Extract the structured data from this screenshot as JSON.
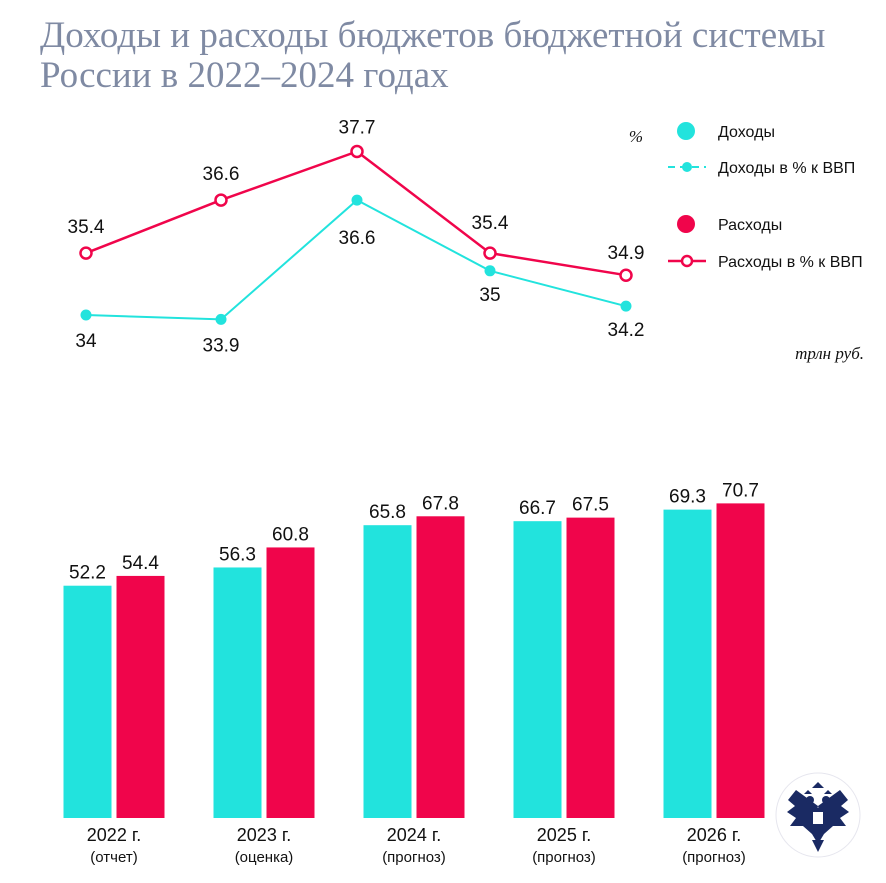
{
  "title": {
    "line1": "Доходы и расходы бюджетов бюджетной системы",
    "line2": "России в 2022–2024 годах"
  },
  "colors": {
    "income": "#22e3dd",
    "expense": "#f0054b",
    "title": "#7f8aa3"
  },
  "logo_icon": "double-headed-eagle-emblem-icon",
  "chart_data": [
    {
      "type": "line",
      "unit_label": "%",
      "categories": [
        "2022 г. (отчет)",
        "2023 г. (оценка)",
        "2024 г. (прогноз)",
        "2025 г. (прогноз)",
        "2026 г. (прогноз)"
      ],
      "series": [
        {
          "name": "Доходы в % к ВВП",
          "values": [
            34,
            33.9,
            36.6,
            35,
            34.2
          ],
          "labels": [
            "34",
            "33.9",
            "36.6",
            "35",
            "34.2"
          ]
        },
        {
          "name": "Расходы в % к ВВП",
          "values": [
            35.4,
            36.6,
            37.7,
            35.4,
            34.9
          ],
          "labels": [
            "35.4",
            "36.6",
            "37.7",
            "35.4",
            "34.9"
          ]
        }
      ],
      "ylim": [
        33.5,
        38
      ]
    },
    {
      "type": "bar",
      "unit_label": "трлн руб.",
      "categories": [
        {
          "year": "2022 г.",
          "note": "(отчет)"
        },
        {
          "year": "2023 г.",
          "note": "(оценка)"
        },
        {
          "year": "2024 г.",
          "note": "(прогноз)"
        },
        {
          "year": "2025 г.",
          "note": "(прогноз)"
        },
        {
          "year": "2026 г.",
          "note": "(прогноз)"
        }
      ],
      "series": [
        {
          "name": "Доходы",
          "values": [
            52.2,
            56.3,
            65.8,
            66.7,
            69.3
          ],
          "labels": [
            "52.2",
            "56.3",
            "65.8",
            "66.7",
            "69.3"
          ]
        },
        {
          "name": "Расходы",
          "values": [
            54.4,
            60.8,
            67.8,
            67.5,
            70.7
          ],
          "labels": [
            "54.4",
            "60.8",
            "67.8",
            "67.5",
            "70.7"
          ]
        }
      ],
      "ylim": [
        0,
        72
      ]
    }
  ],
  "legend": {
    "position": "top-right",
    "items": [
      {
        "label": "Доходы",
        "kind": "dot-income"
      },
      {
        "label": "Доходы в % к ВВП",
        "kind": "line-income"
      },
      {
        "label": "Расходы",
        "kind": "dot-expense"
      },
      {
        "label": "Расходы в % к ВВП",
        "kind": "line-expense"
      }
    ]
  }
}
